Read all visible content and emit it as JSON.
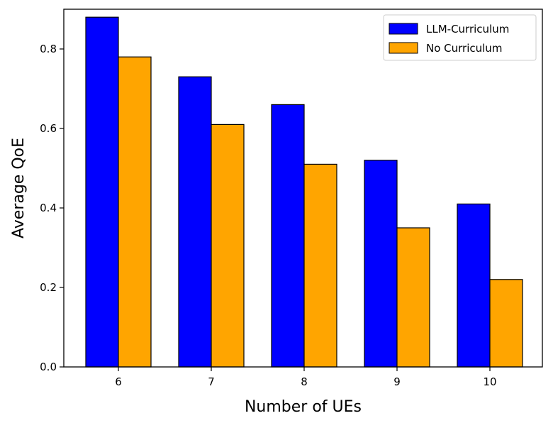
{
  "chart_data": {
    "type": "bar",
    "title": "",
    "xlabel": "Number of UEs",
    "ylabel": "Average QoE",
    "categories": [
      "6",
      "7",
      "8",
      "9",
      "10"
    ],
    "series": [
      {
        "name": "LLM-Curriculum",
        "values": [
          0.88,
          0.73,
          0.66,
          0.52,
          0.41
        ],
        "color": "#0000ff"
      },
      {
        "name": "No Curriculum",
        "values": [
          0.78,
          0.61,
          0.51,
          0.35,
          0.22
        ],
        "color": "#ffa500"
      }
    ],
    "ylim": [
      0,
      0.9
    ],
    "yticks": [
      "0.0",
      "0.2",
      "0.4",
      "0.6",
      "0.8"
    ],
    "grid": false,
    "legend_position": "top-right"
  }
}
